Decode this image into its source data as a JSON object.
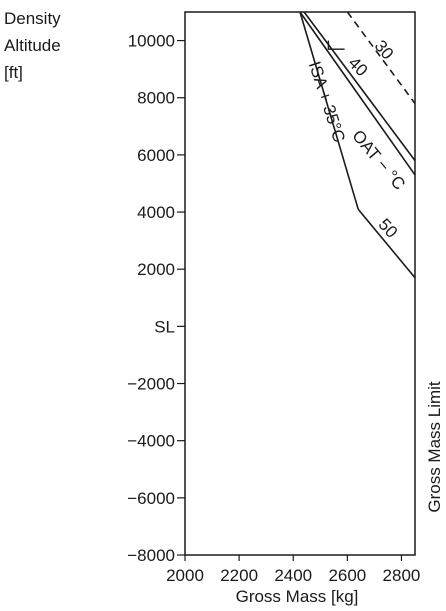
{
  "chart_data": {
    "type": "line",
    "ylabel_lines": [
      "Density",
      "Altitude",
      "[ft]"
    ],
    "xlabel": "Gross Mass [kg]",
    "right_label": "Gross Mass Limit",
    "xlim": [
      2000,
      2850
    ],
    "ylim": [
      -8000,
      11000
    ],
    "x_ticks": [
      2000,
      2200,
      2400,
      2600,
      2800
    ],
    "y_ticks": [
      10000,
      8000,
      6000,
      4000,
      2000,
      0,
      -2000,
      -4000,
      -6000,
      -8000
    ],
    "y_tick_labels": [
      "10000",
      "8000",
      "6000",
      "4000",
      "2000",
      "SL",
      "−2000",
      "−4000",
      "−6000",
      "−8000"
    ],
    "gross_mass_limit": 2850,
    "series": [
      {
        "name": "ISA + 35°C",
        "style": "solid",
        "points": [
          [
            2425,
            11000
          ],
          [
            2640,
            4100
          ]
        ]
      },
      {
        "name": "30",
        "style": "dashed",
        "points": [
          [
            2600,
            11000
          ],
          [
            2850,
            7800
          ]
        ]
      },
      {
        "name": "40",
        "style": "solid",
        "points": [
          [
            2440,
            11000
          ],
          [
            2850,
            5800
          ]
        ]
      },
      {
        "name": "OAT − °C",
        "style": "solid",
        "points": [
          [
            2425,
            11000
          ],
          [
            2850,
            5300
          ]
        ]
      },
      {
        "name": "50",
        "style": "solid",
        "points": [
          [
            2640,
            4100
          ],
          [
            2850,
            1700
          ]
        ]
      }
    ],
    "annotations": [
      "ISA + 35°C",
      "OAT − °C",
      "30",
      "40",
      "50"
    ]
  }
}
